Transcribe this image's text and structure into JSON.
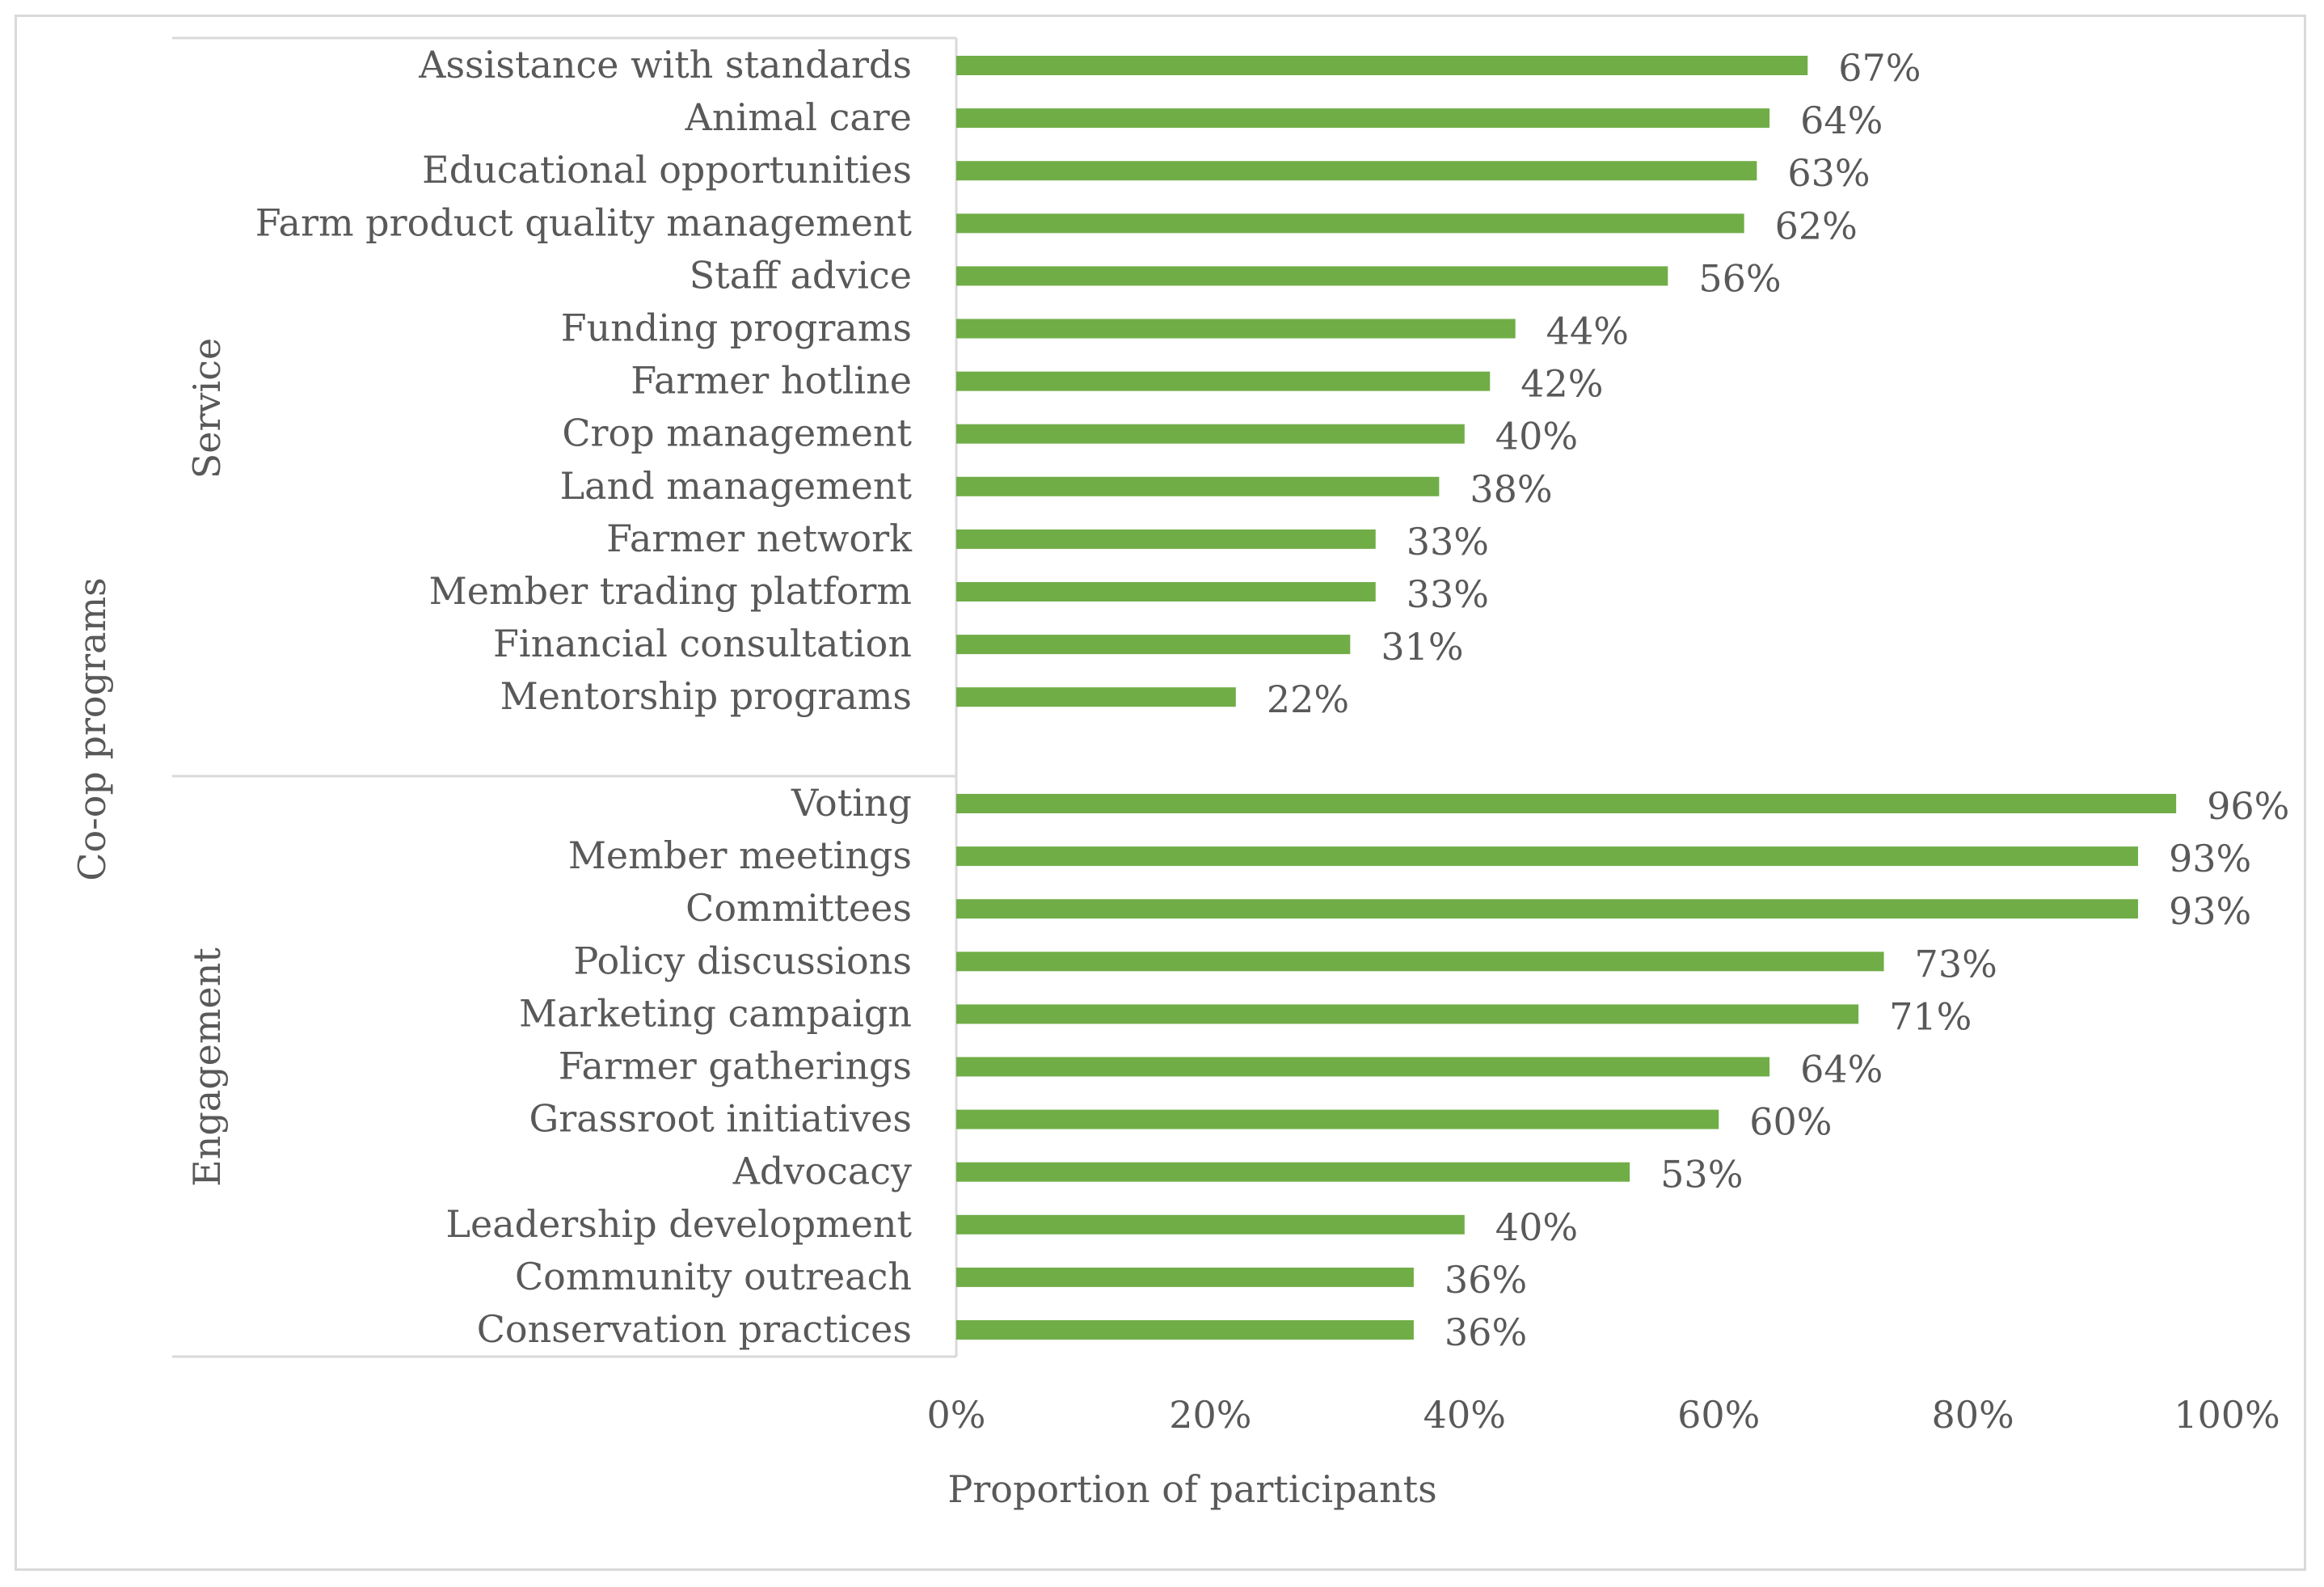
{
  "chart_data": {
    "type": "bar",
    "orientation": "horizontal",
    "title": "",
    "xlabel": "Proportion of participants",
    "ylabel": "Co-op programs",
    "xlim": [
      0,
      100
    ],
    "x_ticks": [
      "0%",
      "20%",
      "40%",
      "60%",
      "80%",
      "100%"
    ],
    "bar_color": "#70ad47",
    "value_suffix": "%",
    "groups": [
      {
        "name": "Service",
        "categories": [
          "Assistance with standards",
          "Animal care",
          "Educational opportunities",
          "Farm product quality management",
          "Staff advice",
          "Funding programs",
          "Farmer hotline",
          "Crop management",
          "Land management",
          "Farmer network",
          "Member trading platform",
          "Financial consultation",
          "Mentorship programs"
        ],
        "values": [
          67,
          64,
          63,
          62,
          56,
          44,
          42,
          40,
          38,
          33,
          33,
          31,
          22
        ]
      },
      {
        "name": "Engagement",
        "categories": [
          "Voting",
          "Member meetings",
          "Committees",
          "Policy discussions",
          "Marketing campaign",
          "Farmer gatherings",
          "Grassroot initiatives",
          "Advocacy",
          "Leadership development",
          "Community outreach",
          "Conservation practices"
        ],
        "values": [
          96,
          93,
          93,
          73,
          71,
          64,
          60,
          53,
          40,
          36,
          36
        ]
      }
    ]
  }
}
